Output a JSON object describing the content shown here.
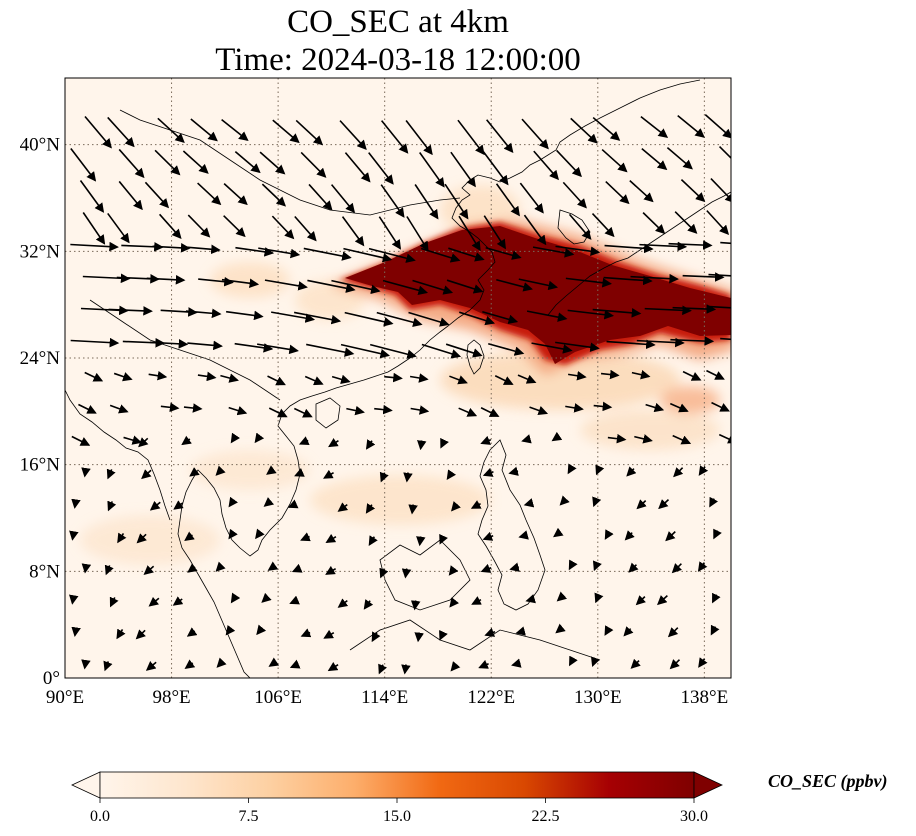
{
  "title": {
    "line1": "CO_SEC at 4km",
    "line2": "Time: 2024-03-18 12:00:00"
  },
  "map": {
    "lon_range": [
      90,
      140
    ],
    "lat_range": [
      0,
      45
    ],
    "x_ticks": [
      {
        "value": 90,
        "label": "90°E"
      },
      {
        "value": 98,
        "label": "98°E"
      },
      {
        "value": 106,
        "label": "106°E"
      },
      {
        "value": 114,
        "label": "114°E"
      },
      {
        "value": 122,
        "label": "122°E"
      },
      {
        "value": 130,
        "label": "130°E"
      },
      {
        "value": 138,
        "label": "138°E"
      }
    ],
    "y_ticks": [
      {
        "value": 0,
        "label": "0°"
      },
      {
        "value": 8,
        "label": "8°N"
      },
      {
        "value": 16,
        "label": "16°N"
      },
      {
        "value": 24,
        "label": "24°N"
      },
      {
        "value": 32,
        "label": "32°N"
      },
      {
        "value": 40,
        "label": "40°N"
      }
    ],
    "gridlines": true,
    "colors": {
      "background": "#fff5eb",
      "coast": "#000000",
      "grid": "#7a6a5a",
      "vector": "#000000"
    }
  },
  "colorbar": {
    "title": "CO_SEC (ppbv)",
    "ticks": [
      {
        "value": 0,
        "label": "0.0"
      },
      {
        "value": 7.5,
        "label": "7.5"
      },
      {
        "value": 15,
        "label": "15.0"
      },
      {
        "value": 22.5,
        "label": "22.5"
      },
      {
        "value": 30,
        "label": "30.0"
      }
    ],
    "range": [
      0,
      30
    ],
    "extend": "both",
    "stops": [
      "#fff5eb",
      "#fee6ce",
      "#fdd0a2",
      "#fdae6b",
      "#f16913",
      "#d94801",
      "#a60003",
      "#7f0000"
    ]
  }
}
